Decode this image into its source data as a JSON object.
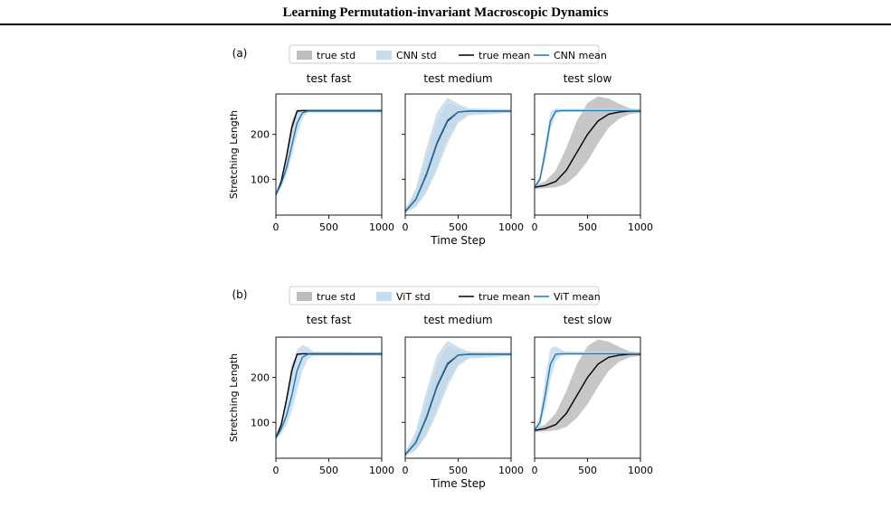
{
  "page": {
    "header_title": "Learning Permutation-invariant Macroscopic Dynamics"
  },
  "colors": {
    "true_std_fill": "#bdbdbd",
    "model_std_fill": "#c6dcef",
    "true_mean_line": "#000000",
    "model_mean_line": "#1f77b4"
  },
  "chart_data": [
    {
      "type": "line",
      "panel_label": "(a)",
      "legend": [
        "true std",
        "CNN std",
        "true mean",
        "CNN mean"
      ],
      "ylabel": "Stretching Length",
      "xlabel": "Time Step",
      "xlim": [
        0,
        1000
      ],
      "ylim": [
        20,
        290
      ],
      "xticks": [
        0,
        500,
        1000
      ],
      "yticks": [
        100,
        200
      ],
      "subplots": [
        {
          "title": "test fast",
          "true_mean": {
            "x": [
              0,
              50,
              100,
              150,
              200,
              250,
              300,
              1000
            ],
            "y": [
              65,
              95,
              150,
              215,
              252,
              253,
              253,
              253
            ]
          },
          "true_std": {
            "x": [
              0,
              50,
              100,
              150,
              200,
              250,
              300,
              1000
            ],
            "lo": [
              63,
              90,
              140,
              200,
              245,
              250,
              250,
              250
            ],
            "hi": [
              68,
              100,
              160,
              230,
              255,
              256,
              256,
              256
            ]
          },
          "model_mean": {
            "x": [
              0,
              50,
              100,
              150,
              200,
              250,
              300,
              1000
            ],
            "y": [
              65,
              90,
              125,
              175,
              225,
              248,
              252,
              252
            ]
          },
          "model_std": {
            "x": [
              0,
              50,
              100,
              150,
              200,
              250,
              300,
              1000
            ],
            "lo": [
              63,
              82,
              110,
              150,
              200,
              235,
              248,
              248
            ],
            "hi": [
              68,
              100,
              145,
              205,
              245,
              256,
              256,
              256
            ]
          }
        },
        {
          "title": "test medium",
          "true_mean": {
            "x": [
              0,
              100,
              200,
              300,
              400,
              500,
              600,
              1000
            ],
            "y": [
              28,
              55,
              110,
              180,
              230,
              250,
              252,
              252
            ]
          },
          "true_std": {
            "x": [
              0,
              100,
              200,
              300,
              400,
              500,
              600,
              1000
            ],
            "lo": [
              25,
              40,
              75,
              130,
              190,
              230,
              245,
              248
            ],
            "hi": [
              32,
              70,
              150,
              230,
              270,
              262,
              256,
              256
            ]
          },
          "model_mean": {
            "x": [
              0,
              100,
              200,
              300,
              400,
              500,
              600,
              1000
            ],
            "y": [
              28,
              55,
              112,
              182,
              232,
              250,
              252,
              252
            ]
          },
          "model_std": {
            "x": [
              0,
              100,
              200,
              300,
              400,
              500,
              600,
              1000
            ],
            "lo": [
              24,
              38,
              70,
              120,
              180,
              225,
              242,
              248
            ],
            "hi": [
              34,
              80,
              170,
              250,
              282,
              268,
              258,
              256
            ]
          }
        },
        {
          "title": "test slow",
          "true_mean": {
            "x": [
              0,
              100,
              200,
              300,
              400,
              500,
              600,
              700,
              800,
              900,
              1000
            ],
            "y": [
              82,
              86,
              95,
              120,
              160,
              200,
              230,
              245,
              250,
              252,
              252
            ]
          },
          "true_std": {
            "x": [
              0,
              100,
              200,
              300,
              400,
              500,
              600,
              700,
              800,
              900,
              1000
            ],
            "lo": [
              78,
              80,
              82,
              90,
              110,
              140,
              180,
              215,
              235,
              245,
              248
            ],
            "hi": [
              86,
              95,
              120,
              170,
              230,
              270,
              285,
              280,
              268,
              258,
              256
            ]
          },
          "model_mean": {
            "x": [
              0,
              50,
              100,
              150,
              200,
              250,
              1000
            ],
            "y": [
              82,
              100,
              160,
              230,
              252,
              253,
              253
            ]
          },
          "model_std": {
            "x": [
              0,
              50,
              100,
              150,
              200,
              250,
              1000
            ],
            "lo": [
              79,
              92,
              140,
              210,
              245,
              250,
              250
            ],
            "hi": [
              85,
              110,
              180,
              250,
              258,
              257,
              257
            ]
          }
        }
      ]
    },
    {
      "type": "line",
      "panel_label": "(b)",
      "legend": [
        "true std",
        "ViT std",
        "true mean",
        "ViT mean"
      ],
      "ylabel": "Stretching Length",
      "xlabel": "Time Step",
      "xlim": [
        0,
        1000
      ],
      "ylim": [
        20,
        290
      ],
      "xticks": [
        0,
        500,
        1000
      ],
      "yticks": [
        100,
        200
      ],
      "subplots": [
        {
          "title": "test fast",
          "true_mean": {
            "x": [
              0,
              50,
              100,
              150,
              200,
              250,
              300,
              1000
            ],
            "y": [
              65,
              95,
              150,
              215,
              252,
              253,
              253,
              253
            ]
          },
          "true_std": {
            "x": [
              0,
              50,
              100,
              150,
              200,
              250,
              300,
              1000
            ],
            "lo": [
              63,
              90,
              140,
              200,
              245,
              250,
              250,
              250
            ],
            "hi": [
              68,
              100,
              160,
              230,
              255,
              256,
              256,
              256
            ]
          },
          "model_mean": {
            "x": [
              0,
              50,
              100,
              150,
              200,
              250,
              300,
              1000
            ],
            "y": [
              65,
              85,
              115,
              160,
              215,
              245,
              252,
              252
            ]
          },
          "model_std": {
            "x": [
              0,
              50,
              100,
              150,
              200,
              250,
              300,
              350,
              1000
            ],
            "lo": [
              63,
              75,
              95,
              125,
              170,
              215,
              240,
              248,
              248
            ],
            "hi": [
              68,
              100,
              150,
              220,
              262,
              272,
              268,
              258,
              256
            ]
          }
        },
        {
          "title": "test medium",
          "true_mean": {
            "x": [
              0,
              100,
              200,
              300,
              400,
              500,
              600,
              1000
            ],
            "y": [
              28,
              55,
              110,
              180,
              230,
              250,
              252,
              252
            ]
          },
          "true_std": {
            "x": [
              0,
              100,
              200,
              300,
              400,
              500,
              600,
              1000
            ],
            "lo": [
              25,
              40,
              75,
              130,
              190,
              230,
              245,
              248
            ],
            "hi": [
              32,
              70,
              150,
              230,
              270,
              262,
              256,
              256
            ]
          },
          "model_mean": {
            "x": [
              0,
              100,
              200,
              300,
              400,
              500,
              600,
              1000
            ],
            "y": [
              28,
              55,
              112,
              182,
              232,
              250,
              252,
              252
            ]
          },
          "model_std": {
            "x": [
              0,
              100,
              200,
              300,
              400,
              500,
              600,
              1000
            ],
            "lo": [
              24,
              38,
              70,
              120,
              180,
              225,
              242,
              248
            ],
            "hi": [
              34,
              80,
              170,
              250,
              282,
              268,
              258,
              256
            ]
          }
        },
        {
          "title": "test slow",
          "true_mean": {
            "x": [
              0,
              100,
              200,
              300,
              400,
              500,
              600,
              700,
              800,
              900,
              1000
            ],
            "y": [
              82,
              86,
              95,
              120,
              160,
              200,
              230,
              245,
              250,
              252,
              252
            ]
          },
          "true_std": {
            "x": [
              0,
              100,
              200,
              300,
              400,
              500,
              600,
              700,
              800,
              900,
              1000
            ],
            "lo": [
              78,
              80,
              82,
              90,
              110,
              140,
              180,
              215,
              235,
              245,
              248
            ],
            "hi": [
              86,
              95,
              120,
              170,
              230,
              270,
              285,
              280,
              268,
              258,
              256
            ]
          },
          "model_mean": {
            "x": [
              0,
              50,
              100,
              150,
              200,
              250,
              1000
            ],
            "y": [
              82,
              100,
              160,
              230,
              252,
              253,
              253
            ]
          },
          "model_std": {
            "x": [
              0,
              50,
              100,
              150,
              200,
              250,
              300,
              1000
            ],
            "lo": [
              79,
              90,
              130,
              195,
              238,
              248,
              250,
              250
            ],
            "hi": [
              85,
              115,
              200,
              265,
              270,
              262,
              258,
              257
            ]
          }
        }
      ]
    }
  ]
}
